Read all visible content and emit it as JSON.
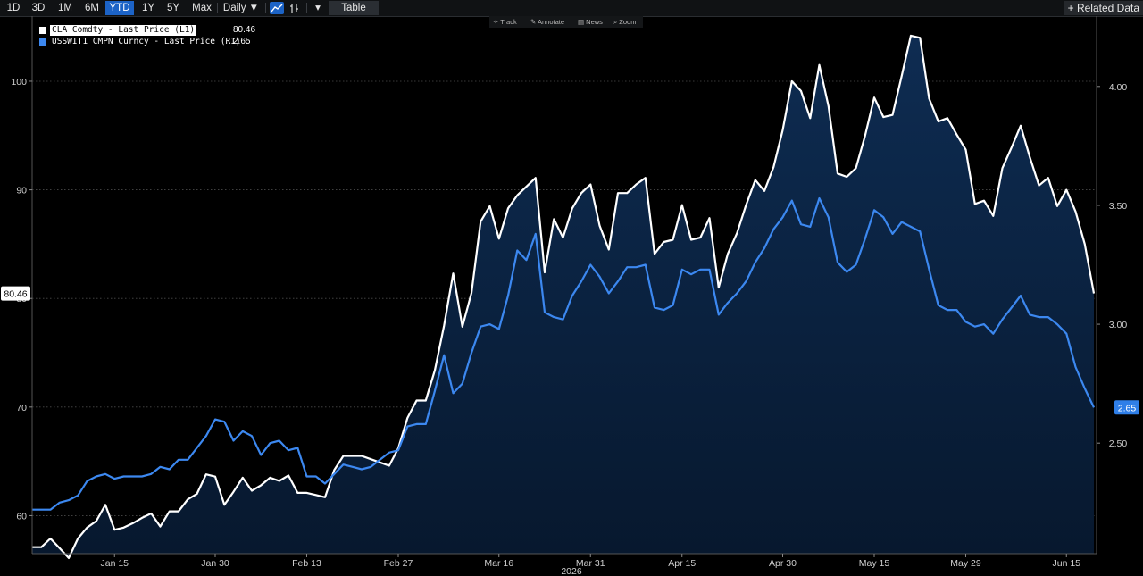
{
  "toolbar": {
    "ranges": [
      "1D",
      "3D",
      "1M",
      "6M",
      "YTD",
      "1Y",
      "5Y",
      "Max"
    ],
    "active_range": "YTD",
    "frequency": "Daily ▼",
    "table_label": "Table",
    "related_label": "+ Related Data",
    "dropdown_caret": "▾"
  },
  "chart_tools": [
    "Track",
    "Annotate",
    "News",
    "Zoom"
  ],
  "legend": [
    {
      "name": "CLA Comdty - Last Price (L1)",
      "value": "80.46",
      "color": "#ffffff"
    },
    {
      "name": "USSWIT1 CMPN Curncy - Last Price (R1)",
      "value": "2.65",
      "color": "#3c88f0"
    }
  ],
  "chart_data": {
    "type": "line",
    "title": "",
    "year_label": "2026",
    "x_labels": [
      "Jan 15",
      "Jan 30",
      "Feb 13",
      "Feb 27",
      "Mar 16",
      "Mar 31",
      "Apr 15",
      "Apr 30",
      "May 15",
      "May 29",
      "Jun 15"
    ],
    "x_label_index": [
      9,
      20,
      30,
      40,
      51,
      61,
      71,
      82,
      92,
      102,
      113
    ],
    "left_axis": {
      "ticks": [
        60,
        70,
        80,
        90,
        100
      ],
      "ylim": [
        56.5,
        106
      ],
      "last_badge": "80.46"
    },
    "right_axis": {
      "ticks": [
        "2.50",
        "3.00",
        "3.50",
        "4.00"
      ],
      "ylim": [
        2.035,
        4.296
      ],
      "last_badge": "2.65"
    },
    "series": [
      {
        "name": "CLA Comdty - Last Price (L1)",
        "axis": "left",
        "color": "#ffffff",
        "fill": true,
        "values": [
          57.1,
          57.1,
          57.9,
          57.0,
          56.1,
          57.9,
          58.9,
          59.5,
          61.0,
          58.7,
          58.9,
          59.3,
          59.8,
          60.2,
          59.0,
          60.4,
          60.4,
          61.5,
          62.0,
          63.8,
          63.6,
          61.0,
          62.2,
          63.5,
          62.3,
          62.8,
          63.5,
          63.2,
          63.7,
          62.1,
          62.1,
          61.9,
          61.7,
          64.2,
          65.5,
          65.5,
          65.5,
          65.2,
          64.9,
          64.6,
          66.2,
          69.0,
          70.6,
          70.6,
          73.4,
          77.5,
          82.3,
          77.4,
          80.5,
          87.1,
          88.5,
          85.5,
          88.3,
          89.5,
          90.3,
          91.1,
          82.4,
          87.3,
          85.6,
          88.3,
          89.7,
          90.5,
          86.7,
          84.5,
          89.7,
          89.7,
          90.5,
          91.1,
          84.1,
          85.2,
          85.4,
          88.6,
          85.4,
          85.6,
          87.4,
          81.0,
          84.1,
          86.0,
          88.6,
          90.9,
          89.9,
          92.1,
          95.5,
          100.0,
          99.1,
          96.6,
          101.5,
          97.7,
          91.5,
          91.2,
          92.0,
          95.0,
          98.5,
          96.7,
          96.9,
          100.5,
          104.2,
          104.0,
          98.4,
          96.3,
          96.6,
          95.1,
          93.7,
          88.7,
          89.0,
          87.6,
          92.0,
          93.9,
          95.9,
          93.0,
          90.4,
          91.1,
          88.5,
          90.0,
          88.0,
          85.0,
          80.46
        ]
      },
      {
        "name": "USSWIT1 CMPN Curncy - Last Price (R1)",
        "axis": "right",
        "color": "#3c88f0",
        "fill": false,
        "values": [
          2.22,
          2.22,
          2.22,
          2.25,
          2.26,
          2.28,
          2.34,
          2.36,
          2.37,
          2.35,
          2.36,
          2.36,
          2.36,
          2.37,
          2.4,
          2.39,
          2.43,
          2.43,
          2.48,
          2.53,
          2.6,
          2.59,
          2.51,
          2.55,
          2.53,
          2.45,
          2.5,
          2.51,
          2.47,
          2.48,
          2.36,
          2.36,
          2.33,
          2.37,
          2.41,
          2.4,
          2.39,
          2.4,
          2.43,
          2.46,
          2.47,
          2.57,
          2.58,
          2.58,
          2.72,
          2.87,
          2.71,
          2.75,
          2.88,
          2.99,
          3.0,
          2.98,
          3.12,
          3.31,
          3.27,
          3.38,
          3.05,
          3.03,
          3.02,
          3.12,
          3.18,
          3.25,
          3.2,
          3.13,
          3.18,
          3.24,
          3.24,
          3.25,
          3.07,
          3.06,
          3.08,
          3.23,
          3.21,
          3.23,
          3.23,
          3.04,
          3.09,
          3.13,
          3.18,
          3.26,
          3.32,
          3.4,
          3.45,
          3.52,
          3.42,
          3.41,
          3.53,
          3.45,
          3.26,
          3.22,
          3.25,
          3.36,
          3.48,
          3.45,
          3.38,
          3.43,
          3.41,
          3.39,
          3.23,
          3.08,
          3.06,
          3.06,
          3.01,
          2.99,
          3.0,
          2.96,
          3.02,
          3.07,
          3.12,
          3.04,
          3.03,
          3.03,
          3.0,
          2.96,
          2.82,
          2.73,
          2.65
        ]
      }
    ]
  }
}
